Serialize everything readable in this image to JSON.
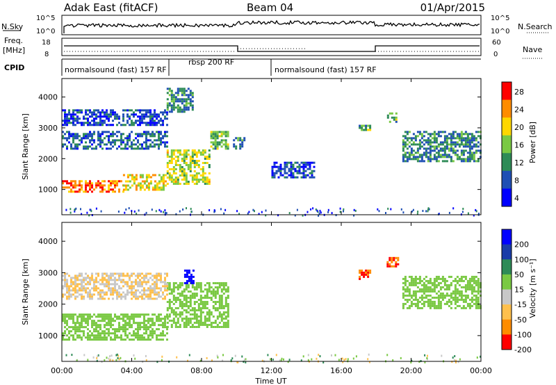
{
  "header": {
    "station": "Adak East (fitACF)",
    "beam": "Beam 04",
    "date": "01/Apr/2015"
  },
  "top_panels": {
    "nsky_label": "N.Sky",
    "nsky_ticks": [
      "10^5",
      "10^0"
    ],
    "nsearch_label": "N.Search",
    "nsearch_ticks": [
      "10^5",
      "10^0"
    ],
    "freq_label": "Freq.",
    "freq_unit": "[MHz]",
    "freq_ticks": [
      "18",
      "8"
    ],
    "nave_label": "Nave",
    "nave_ticks": [
      "60",
      "0"
    ],
    "cpid_label": "CPID",
    "cpid_segments": [
      "normalsound (fast) 157 RF",
      "rbsp 200 RF",
      "normalsound (fast) 157 RF"
    ]
  },
  "colorbars": {
    "power_label": "Power [dB]",
    "power_ticks": [
      "28",
      "24",
      "20",
      "16",
      "12",
      "8",
      "4"
    ],
    "power_colors": [
      "#0000ff",
      "#1f4fb4",
      "#2e8b57",
      "#7ac943",
      "#ffd700",
      "#ff8c00",
      "#ff0000"
    ],
    "velocity_label": "Velocity [m s⁻¹]",
    "velocity_ticks": [
      "200",
      "100",
      "50",
      "15",
      "-15",
      "-50",
      "-100",
      "-200"
    ],
    "velocity_colors": [
      "#0000ff",
      "#1a3ca8",
      "#2e8b57",
      "#7ac943",
      "#c8c8c8",
      "#ffc04d",
      "#ff8c00",
      "#ff0000"
    ]
  },
  "x_axis": {
    "label": "Time UT",
    "ticks": [
      "00:00",
      "04:00",
      "08:00",
      "12:00",
      "16:00",
      "20:00",
      "00:00"
    ]
  },
  "chart_data": [
    {
      "type": "heatmap",
      "panel": "power",
      "ylabel": "Slant Range [km]",
      "xlabel": "Time UT",
      "x_range_hours": [
        0,
        24
      ],
      "ylim": [
        180,
        4600
      ],
      "yticks": [
        1000,
        2000,
        3000,
        4000
      ],
      "colorbar": "Power [dB]",
      "clim": [
        0,
        32
      ],
      "echo_regions": [
        {
          "t": [
            0.0,
            3.5
          ],
          "range_km": [
            900,
            1300
          ],
          "power_db": 26
        },
        {
          "t": [
            3.5,
            6.0
          ],
          "range_km": [
            1000,
            1500
          ],
          "power_db": 20
        },
        {
          "t": [
            6.0,
            8.5
          ],
          "range_km": [
            1200,
            2300
          ],
          "power_db": 18
        },
        {
          "t": [
            8.5,
            9.5
          ],
          "range_km": [
            2300,
            2900
          ],
          "power_db": 14
        },
        {
          "t": [
            0.0,
            6.0
          ],
          "range_km": [
            2300,
            2900
          ],
          "power_db": 8
        },
        {
          "t": [
            0.0,
            6.0
          ],
          "range_km": [
            3100,
            3600
          ],
          "power_db": 6
        },
        {
          "t": [
            6.0,
            7.5
          ],
          "range_km": [
            3500,
            4300
          ],
          "power_db": 10
        },
        {
          "t": [
            9.8,
            10.4
          ],
          "range_km": [
            2300,
            2700
          ],
          "power_db": 10
        },
        {
          "t": [
            12.0,
            14.5
          ],
          "range_km": [
            1400,
            1900
          ],
          "power_db": 6
        },
        {
          "t": [
            17.0,
            17.7
          ],
          "range_km": [
            2900,
            3100
          ],
          "power_db": 14
        },
        {
          "t": [
            18.5,
            19.2
          ],
          "range_km": [
            3200,
            3500
          ],
          "power_db": 14
        },
        {
          "t": [
            19.5,
            24.0
          ],
          "range_km": [
            1900,
            2900
          ],
          "power_db": 10
        }
      ]
    },
    {
      "type": "heatmap",
      "panel": "velocity",
      "ylabel": "Slant Range [km]",
      "xlabel": "Time UT",
      "x_range_hours": [
        0,
        24
      ],
      "ylim": [
        180,
        4600
      ],
      "yticks": [
        1000,
        2000,
        3000,
        4000
      ],
      "colorbar": "Velocity [m s⁻¹]",
      "clim": [
        -200,
        200
      ],
      "echo_regions": [
        {
          "t": [
            0.0,
            6.0
          ],
          "range_km": [
            900,
            1700
          ],
          "velocity": 0,
          "ground_scatter": true
        },
        {
          "t": [
            6.0,
            9.5
          ],
          "range_km": [
            1300,
            2700
          ],
          "velocity": 0,
          "ground_scatter": true
        },
        {
          "t": [
            0.0,
            6.0
          ],
          "range_km": [
            2200,
            3000
          ],
          "velocity": -30
        },
        {
          "t": [
            7.0,
            7.5
          ],
          "range_km": [
            2700,
            3100
          ],
          "velocity": 200
        },
        {
          "t": [
            17.0,
            17.7
          ],
          "range_km": [
            2800,
            3100
          ],
          "velocity": -150
        },
        {
          "t": [
            18.6,
            19.2
          ],
          "range_km": [
            3200,
            3500
          ],
          "velocity": -150
        },
        {
          "t": [
            19.5,
            24.0
          ],
          "range_km": [
            1900,
            2900
          ],
          "velocity": 0,
          "ground_scatter": true
        }
      ]
    }
  ]
}
